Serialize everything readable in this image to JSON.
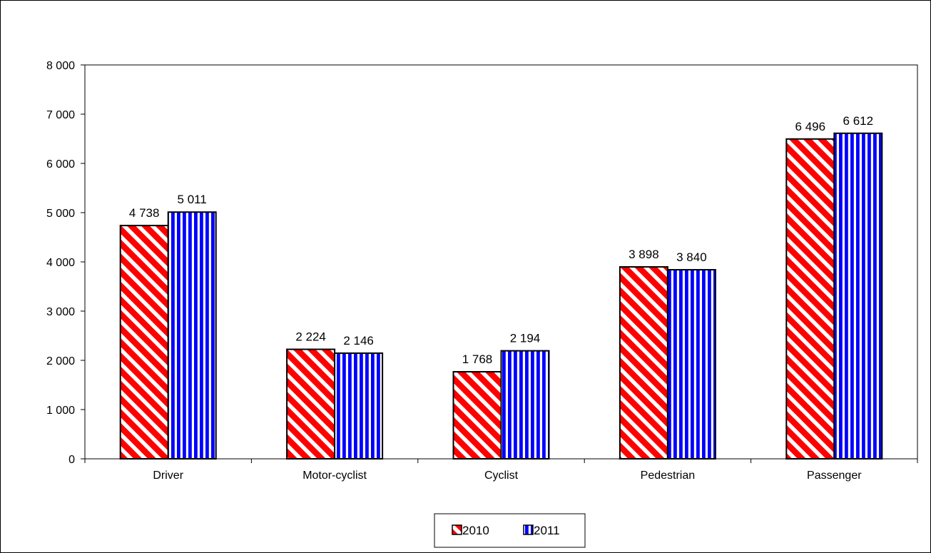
{
  "chart_data": {
    "type": "bar",
    "title": "",
    "xlabel": "",
    "ylabel": "",
    "categories": [
      "Driver",
      "Motor-cyclist",
      "Cyclist",
      "Pedestrian",
      "Passenger"
    ],
    "series": [
      {
        "name": "2010",
        "values": [
          4738,
          2224,
          1768,
          3898,
          6496
        ],
        "labels": [
          "4 738",
          "2 224",
          "1 768",
          "3 898",
          "6 496"
        ],
        "color": "#ff0000",
        "pattern": "diagonal-stripes"
      },
      {
        "name": "2011",
        "values": [
          5011,
          2146,
          2194,
          3840,
          6612
        ],
        "labels": [
          "5 011",
          "2 146",
          "2 194",
          "3 840",
          "6 612"
        ],
        "color": "#0000ff",
        "pattern": "vertical-stripes"
      }
    ],
    "ylim": [
      0,
      8000
    ],
    "yticks": [
      0,
      1000,
      2000,
      3000,
      4000,
      5000,
      6000,
      7000,
      8000
    ],
    "ytick_labels": [
      "0",
      "1 000",
      "2 000",
      "3 000",
      "4 000",
      "5 000",
      "6 000",
      "7 000",
      "8 000"
    ],
    "grid": false,
    "legend_position": "bottom-center"
  }
}
